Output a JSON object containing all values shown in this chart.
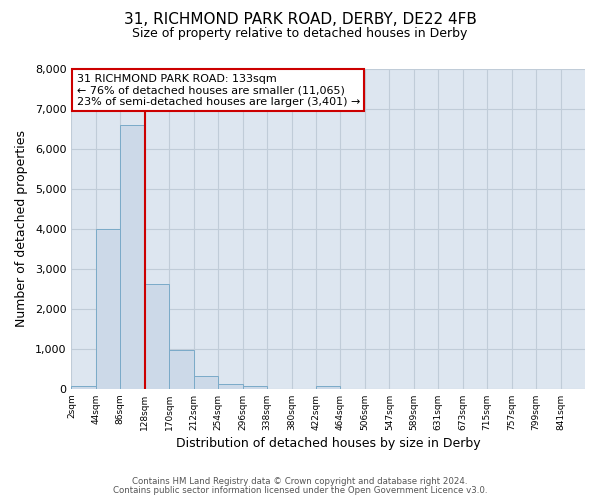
{
  "title_line1": "31, RICHMOND PARK ROAD, DERBY, DE22 4FB",
  "title_line2": "Size of property relative to detached houses in Derby",
  "xlabel": "Distribution of detached houses by size in Derby",
  "ylabel": "Number of detached properties",
  "bin_labels": [
    "2sqm",
    "44sqm",
    "86sqm",
    "128sqm",
    "170sqm",
    "212sqm",
    "254sqm",
    "296sqm",
    "338sqm",
    "380sqm",
    "422sqm",
    "464sqm",
    "506sqm",
    "547sqm",
    "589sqm",
    "631sqm",
    "673sqm",
    "715sqm",
    "757sqm",
    "799sqm",
    "841sqm"
  ],
  "bin_values": [
    70,
    4000,
    6600,
    2620,
    960,
    320,
    120,
    80,
    0,
    0,
    80,
    0,
    0,
    0,
    0,
    0,
    0,
    0,
    0,
    0,
    0
  ],
  "bar_color": "#ccd9e8",
  "bar_edge_color": "#7aaac8",
  "property_line_color": "#cc0000",
  "annotation_text": "31 RICHMOND PARK ROAD: 133sqm\n← 76% of detached houses are smaller (11,065)\n23% of semi-detached houses are larger (3,401) →",
  "annotation_box_color": "#ffffff",
  "annotation_box_edge_color": "#cc0000",
  "ylim": [
    0,
    8000
  ],
  "background_color": "#ffffff",
  "axes_bg_color": "#dde6f0",
  "grid_color": "#c0ccd8",
  "footer_line1": "Contains HM Land Registry data © Crown copyright and database right 2024.",
  "footer_line2": "Contains public sector information licensed under the Open Government Licence v3.0."
}
